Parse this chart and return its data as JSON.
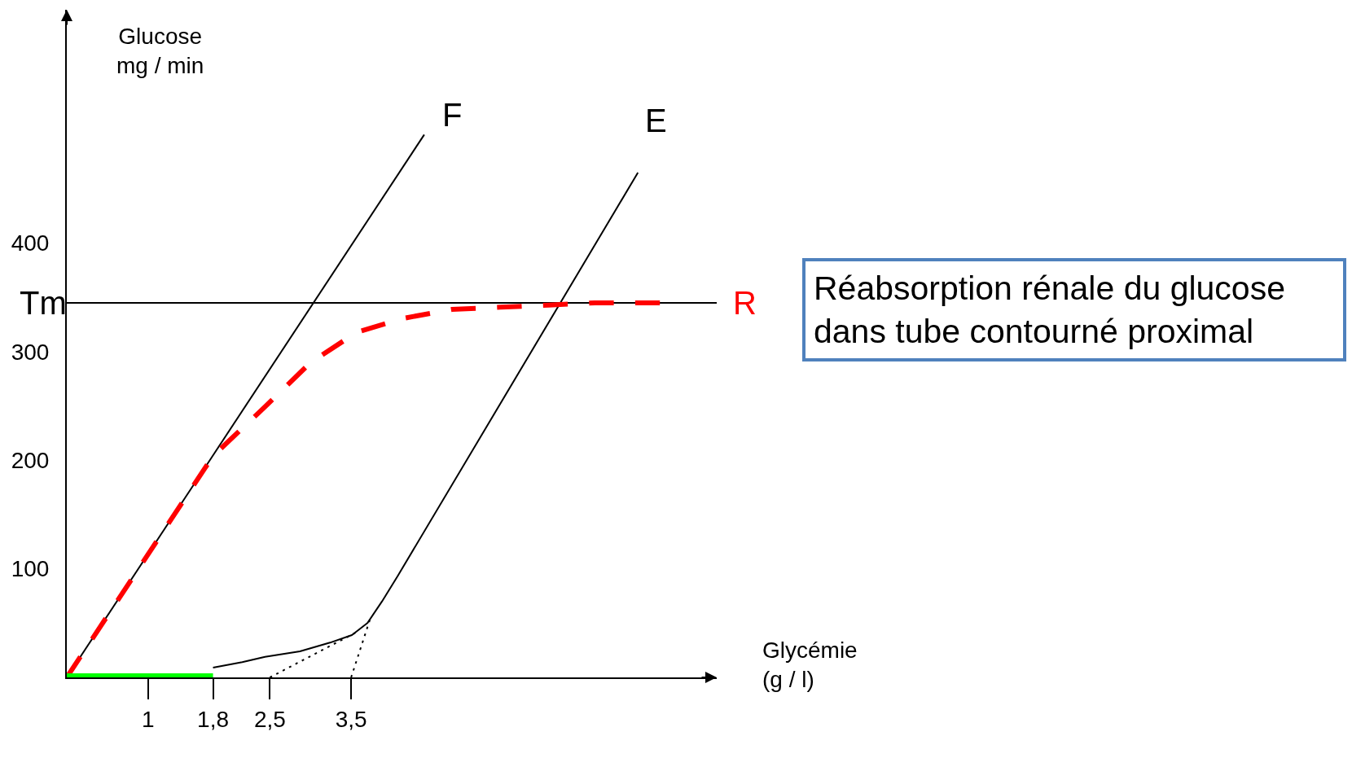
{
  "chart_data": {
    "type": "line",
    "title": "Réabsorption rénale du glucose dans tube contourné proximal",
    "xlabel": "Glycémie (g / l)",
    "ylabel": "Glucose mg / min",
    "xlim": [
      0,
      8
    ],
    "ylim": [
      0,
      615
    ],
    "xticks": [
      1,
      {
        "value": 1.8,
        "label": "1,8"
      },
      {
        "value": 2.5,
        "label": "2,5"
      },
      {
        "value": 3.5,
        "label": "3,5"
      }
    ],
    "yticks": [
      100,
      200,
      300,
      400
    ],
    "ref_lines": [
      {
        "axis": "y",
        "value": 345,
        "label": "Tm",
        "color": "#000000"
      }
    ],
    "legend": false,
    "series": [
      {
        "name": "F",
        "color": "#000000",
        "line_style": "solid",
        "x": [
          0,
          4.4
        ],
        "values": [
          0,
          500
        ]
      },
      {
        "name": "E",
        "color": "#000000",
        "line_style": "solid",
        "x": [
          1.8,
          2.16,
          2.44,
          2.87,
          3.24,
          3.51,
          3.7,
          3.88,
          4.07,
          7.03
        ],
        "values": [
          9,
          14,
          19,
          24,
          32,
          39,
          50,
          70,
          93,
          465
        ]
      },
      {
        "name": "R",
        "color": "#ff0000",
        "line_style": "dashed",
        "x": [
          0,
          1.8,
          2.45,
          3.0,
          3.57,
          4.16,
          4.74,
          5.34,
          5.93,
          6.5,
          7.3
        ],
        "values": [
          0,
          204,
          250,
          290,
          318,
          331,
          339,
          341,
          343,
          345,
          345
        ]
      },
      {
        "color": "#00ff00",
        "line_style": "solid",
        "x": [
          0,
          1.8
        ],
        "values": [
          0,
          0
        ]
      },
      {
        "color": "#000000",
        "line_style": "dotted",
        "x": [
          2.5,
          3.55
        ],
        "values": [
          0,
          41
        ]
      },
      {
        "color": "#000000",
        "line_style": "dotted",
        "x": [
          3.5,
          3.73
        ],
        "values": [
          0,
          53
        ]
      }
    ]
  }
}
